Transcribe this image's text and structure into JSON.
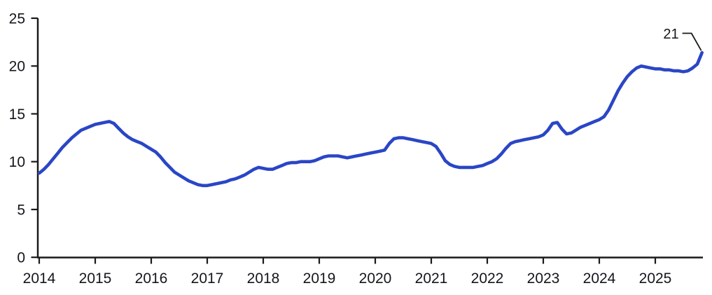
{
  "chart_data": {
    "type": "line",
    "title": "",
    "xlabel": "",
    "ylabel": "",
    "grid": false,
    "legend": null,
    "x_start_year": 2014.0,
    "x_step_years": 0.083333,
    "x_end_year": 2025.833,
    "xlim": [
      2014.0,
      2025.9
    ],
    "ylim": [
      0,
      25
    ],
    "xticks": [
      2014,
      2015,
      2016,
      2017,
      2018,
      2019,
      2020,
      2021,
      2022,
      2023,
      2024,
      2025
    ],
    "yticks": [
      0,
      5,
      10,
      15,
      20,
      25
    ],
    "values": [
      8.8,
      9.2,
      9.7,
      10.3,
      10.9,
      11.5,
      12.0,
      12.5,
      12.9,
      13.3,
      13.5,
      13.7,
      13.9,
      14.0,
      14.1,
      14.2,
      14.0,
      13.5,
      13.0,
      12.6,
      12.3,
      12.1,
      11.9,
      11.6,
      11.3,
      11.0,
      10.5,
      9.9,
      9.4,
      8.9,
      8.6,
      8.3,
      8.0,
      7.8,
      7.6,
      7.5,
      7.5,
      7.6,
      7.7,
      7.8,
      7.9,
      8.1,
      8.2,
      8.4,
      8.6,
      8.9,
      9.2,
      9.4,
      9.3,
      9.2,
      9.2,
      9.4,
      9.6,
      9.8,
      9.9,
      9.9,
      10.0,
      10.0,
      10.0,
      10.1,
      10.3,
      10.5,
      10.6,
      10.6,
      10.6,
      10.5,
      10.4,
      10.5,
      10.6,
      10.7,
      10.8,
      10.9,
      11.0,
      11.1,
      11.2,
      11.9,
      12.4,
      12.5,
      12.5,
      12.4,
      12.3,
      12.2,
      12.1,
      12.0,
      11.9,
      11.6,
      10.9,
      10.1,
      9.7,
      9.5,
      9.4,
      9.4,
      9.4,
      9.4,
      9.5,
      9.6,
      9.8,
      10.0,
      10.3,
      10.8,
      11.4,
      11.9,
      12.1,
      12.2,
      12.3,
      12.4,
      12.5,
      12.6,
      12.8,
      13.3,
      14.0,
      14.1,
      13.4,
      12.9,
      13.0,
      13.3,
      13.6,
      13.8,
      14.0,
      14.2,
      14.4,
      14.7,
      15.4,
      16.4,
      17.4,
      18.2,
      18.9,
      19.4,
      19.8,
      20.0,
      19.9,
      19.8,
      19.7,
      19.7,
      19.6,
      19.6,
      19.5,
      19.5,
      19.4,
      19.5,
      19.8,
      20.2,
      21.4
    ],
    "annotation": {
      "label": "21",
      "x_year": 2025.833,
      "value": 21.4
    },
    "line_color": "#2A46C6",
    "axis_color": "#1A1A1A",
    "text_color": "#15151D"
  }
}
